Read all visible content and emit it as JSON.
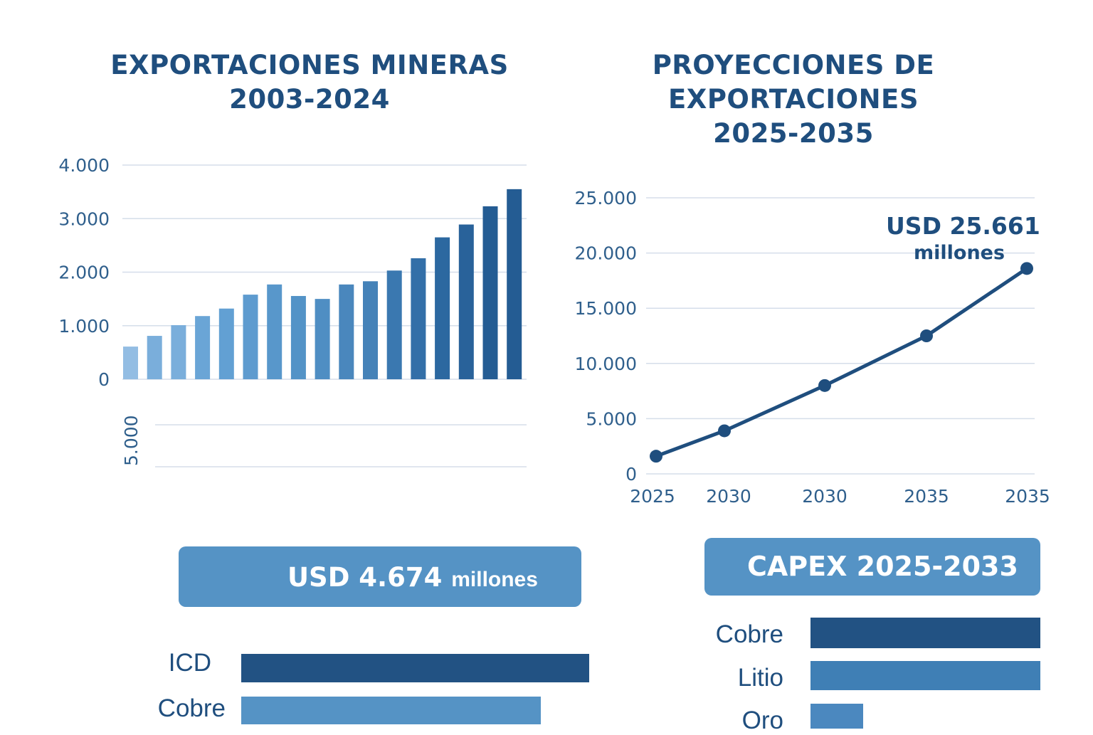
{
  "chart_data": [
    {
      "type": "bar",
      "title": "EXPORTACIONES MINERAS 2003-2024",
      "title_lines": [
        "EXPORTACIONES MINERAS",
        "2003-2024"
      ],
      "xlabel": "",
      "ylabel": "",
      "ylim": [
        0,
        4000
      ],
      "yticks": [
        "0",
        "1.000",
        "2.000",
        "3.000",
        "4.000"
      ],
      "ytick_values": [
        0,
        1000,
        2000,
        3000,
        4000
      ],
      "extra_tick_label": "5.000",
      "grid": true,
      "values": [
        610,
        810,
        1010,
        1180,
        1320,
        1580,
        1770,
        1555,
        1500,
        1770,
        1830,
        2030,
        2260,
        2650,
        2890,
        3230,
        3550
      ],
      "colors": [
        "#93bde3",
        "#7aaedb",
        "#7aaedb",
        "#6aa5d6",
        "#62a0d3",
        "#5e9bcf",
        "#5897cb",
        "#5393c7",
        "#4f8ec3",
        "#4a87bd",
        "#4582b8",
        "#3a78b0",
        "#336fa8",
        "#2c68a0",
        "#29629a",
        "#245c93",
        "#245c93"
      ]
    },
    {
      "type": "line",
      "title": "PROYECCIONES DE EXPORTACIONES 2025-2035",
      "title_lines": [
        "PROYECCIONES DE",
        "EXPORTACIONES",
        "2025-2035"
      ],
      "xlabel": "",
      "ylabel": "",
      "categories": [
        "2025",
        "2030",
        "2030",
        "2035",
        "2035"
      ],
      "values": [
        1600,
        3900,
        8000,
        12500,
        18600
      ],
      "ylim": [
        0,
        25000
      ],
      "yticks": [
        "0",
        "5.000",
        "10.000",
        "15.000",
        "20.000",
        "25.000"
      ],
      "ytick_values": [
        0,
        5000,
        10000,
        15000,
        20000,
        25000
      ],
      "grid": true,
      "annotation": {
        "line1": "USD 25.661",
        "line2": "millones"
      },
      "color": "#1f4e7e"
    },
    {
      "type": "bar",
      "orientation": "horizontal",
      "title": "USD 4.674 millones",
      "banner": {
        "amount": "USD 4.674",
        "unit": "millones"
      },
      "categories": [
        "ICD",
        "Cobre"
      ],
      "values": [
        100,
        86
      ],
      "colors": [
        "#225283",
        "#5593c5"
      ]
    },
    {
      "type": "bar",
      "orientation": "horizontal",
      "title": "CAPEX 2025-2033",
      "categories": [
        "Cobre",
        "Litio",
        "Oro"
      ],
      "values": [
        100,
        100,
        23
      ],
      "colors": [
        "#225283",
        "#3f7fb5",
        "#4b88bf"
      ]
    }
  ]
}
